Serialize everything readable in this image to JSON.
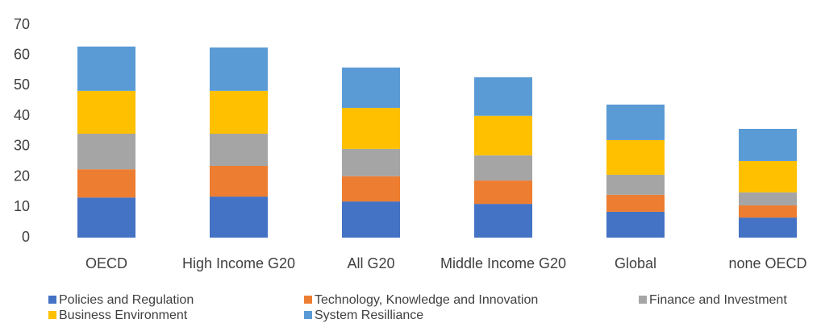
{
  "chart_data": {
    "type": "stacked_bar",
    "categories": [
      "OECD",
      "High Income G20",
      "All G20",
      "Middle Income G20",
      "Global",
      "none OECD"
    ],
    "series": [
      {
        "name": "Policies and Regulation",
        "color": "#4472c4",
        "values": [
          13.2,
          13.5,
          11.9,
          11.1,
          8.5,
          6.6
        ]
      },
      {
        "name": "Technology, Knowledge and Innovation",
        "color": "#ed7d31",
        "values": [
          9.3,
          10.1,
          8.3,
          7.7,
          5.6,
          4.0
        ]
      },
      {
        "name": "Finance and Investment",
        "color": "#a5a5a5",
        "values": [
          11.7,
          10.6,
          9.0,
          8.3,
          6.6,
          4.3
        ]
      },
      {
        "name": "Business Environment",
        "color": "#ffc000",
        "values": [
          14.1,
          14.1,
          13.5,
          13.0,
          11.4,
          10.3
        ]
      },
      {
        "name": "System Resilliance",
        "color": "#5b9bd5",
        "values": [
          14.6,
          14.3,
          13.3,
          12.7,
          11.7,
          10.6
        ]
      }
    ],
    "ylim": [
      0,
      70
    ],
    "yticks": [
      0,
      10,
      20,
      30,
      40,
      50,
      60,
      70
    ],
    "grid": false,
    "legend": "bottom"
  }
}
